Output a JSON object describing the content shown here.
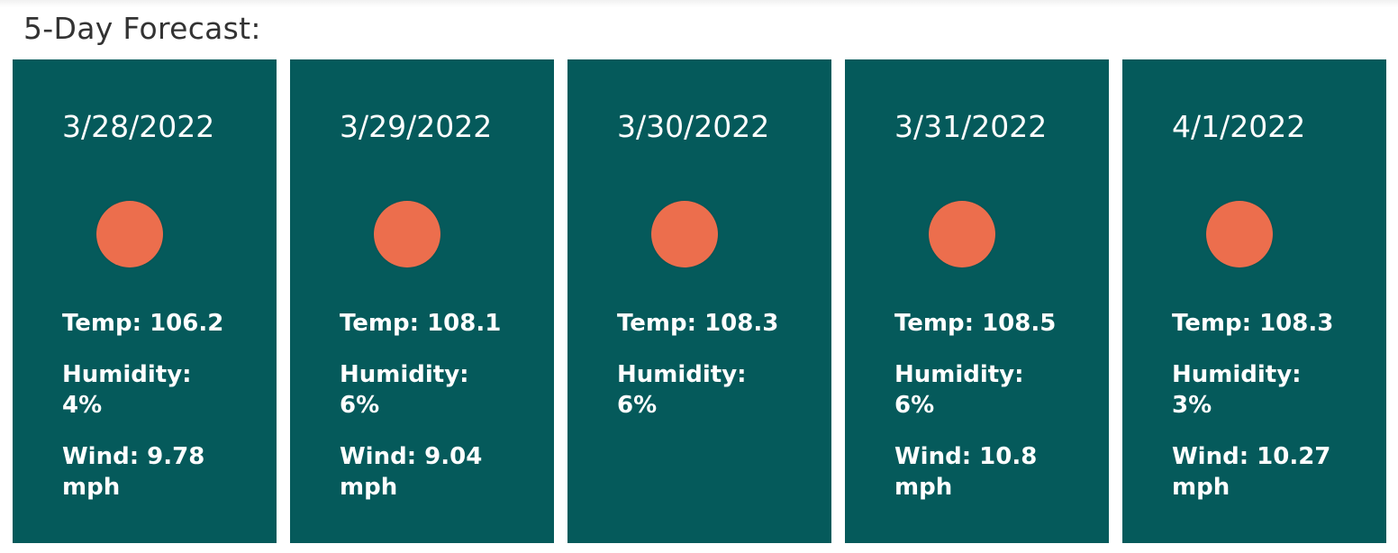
{
  "heading": "5-Day Forecast:",
  "colors": {
    "card_bg": "#055a5b",
    "sun": "#ec6e4d",
    "text": "#ffffff",
    "heading": "#333333"
  },
  "forecast": [
    {
      "date": "3/28/2022",
      "icon": "sun-icon",
      "temp": "Temp: 106.2",
      "humidity": "Humidity: 4%",
      "wind": "Wind: 9.78 mph"
    },
    {
      "date": "3/29/2022",
      "icon": "sun-icon",
      "temp": "Temp: 108.1",
      "humidity": "Humidity: 6%",
      "wind": "Wind: 9.04 mph"
    },
    {
      "date": "3/30/2022",
      "icon": "sun-icon",
      "temp": "Temp: 108.3",
      "humidity": "Humidity: 6%",
      "wind": ""
    },
    {
      "date": "3/31/2022",
      "icon": "sun-icon",
      "temp": "Temp: 108.5",
      "humidity": "Humidity: 6%",
      "wind": "Wind: 10.8 mph"
    },
    {
      "date": "4/1/2022",
      "icon": "sun-icon",
      "temp": "Temp: 108.3",
      "humidity": "Humidity: 3%",
      "wind": "Wind: 10.27 mph"
    }
  ]
}
